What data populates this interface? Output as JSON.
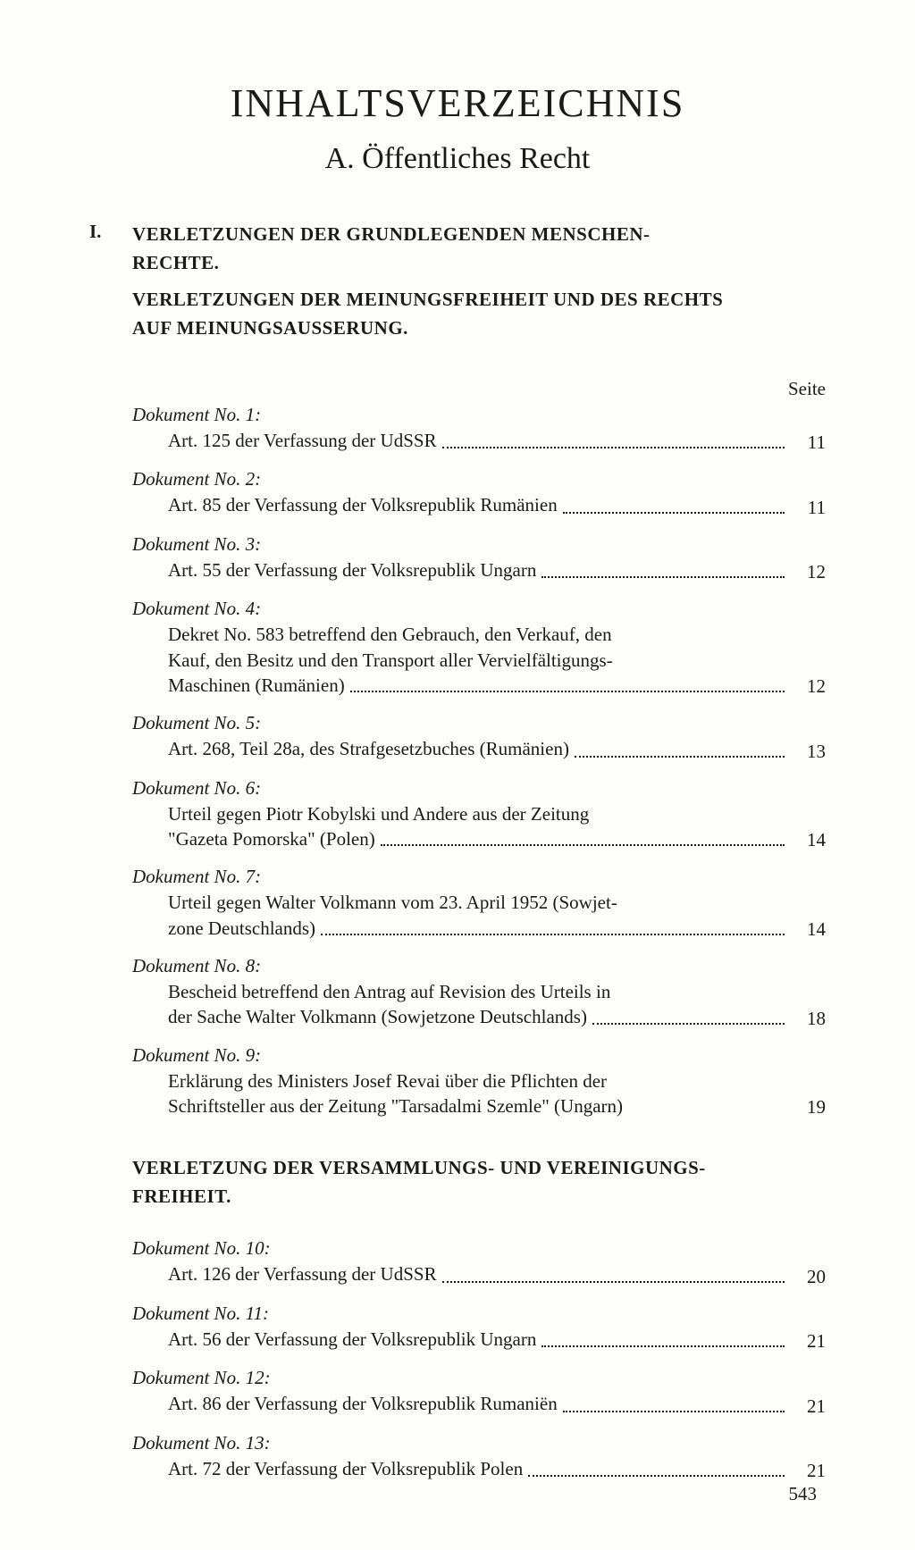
{
  "title": "INHALTSVERZEICHNIS",
  "subtitle": "A.  Öffentliches Recht",
  "roman": "I.",
  "section1_line1": "VERLETZUNGEN DER GRUNDLEGENDEN MENSCHEN-",
  "section1_line2": "RECHTE.",
  "section1b_line1": "VERLETZUNGEN DER MEINUNGSFREIHEIT UND DES RECHTS",
  "section1b_line2": "AUF MEINUNGSAUSSERUNG.",
  "seite_label": "Seite",
  "section2_line1": "VERLETZUNG DER VERSAMMLUNGS- UND VEREINIGUNGS-",
  "section2_line2": "FREIHEIT.",
  "page_number": "543",
  "d1": {
    "label": "Dokument No. 1:",
    "desc": "Art. 125 der Verfassung der UdSSR",
    "page": "11"
  },
  "d2": {
    "label": "Dokument No. 2:",
    "desc": "Art. 85 der Verfassung der Volksrepublik Rumänien",
    "page": "11"
  },
  "d3": {
    "label": "Dokument No. 3:",
    "desc": "Art. 55 der Verfassung der Volksrepublik Ungarn",
    "page": "12"
  },
  "d4": {
    "label": "Dokument No. 4:",
    "line1": "Dekret No. 583 betreffend den Gebrauch, den Verkauf, den",
    "line2": "Kauf, den Besitz und den Transport aller Vervielfältigungs-",
    "line3": "Maschinen (Rumänien)",
    "page": "12"
  },
  "d5": {
    "label": "Dokument No. 5:",
    "desc": "Art. 268, Teil 28a, des Strafgesetzbuches (Rumänien)",
    "page": "13"
  },
  "d6": {
    "label": "Dokument No. 6:",
    "line1": "Urteil gegen Piotr Kobylski und Andere aus der Zeitung",
    "line2": "\"Gazeta Pomorska\" (Polen)",
    "page": "14"
  },
  "d7": {
    "label": "Dokument No. 7:",
    "line1": "Urteil gegen Walter Volkmann vom 23. April 1952 (Sowjet-",
    "line2": "zone Deutschlands)",
    "page": "14"
  },
  "d8": {
    "label": "Dokument No. 8:",
    "line1": "Bescheid betreffend den Antrag auf Revision des Urteils in",
    "line2": "der Sache Walter Volkmann (Sowjetzone Deutschlands)",
    "page": "18"
  },
  "d9": {
    "label": "Dokument No. 9:",
    "line1": "Erklärung des Ministers Josef Revai über die Pflichten der",
    "line2": "Schriftsteller aus der Zeitung \"Tarsadalmi Szemle\" (Ungarn)",
    "page": "19"
  },
  "d10": {
    "label": "Dokument No. 10:",
    "desc": "Art. 126 der Verfassung der UdSSR",
    "page": "20"
  },
  "d11": {
    "label": "Dokument No. 11:",
    "desc": "Art. 56 der Verfassung der Volksrepublik Ungarn",
    "page": "21"
  },
  "d12": {
    "label": "Dokument No. 12:",
    "desc": "Art. 86 der Verfassung der Volksrepublik Rumaniën",
    "page": "21"
  },
  "d13": {
    "label": "Dokument No. 13:",
    "desc": "Art. 72 der Verfassung der Volksrepublik Polen",
    "page": "21"
  }
}
